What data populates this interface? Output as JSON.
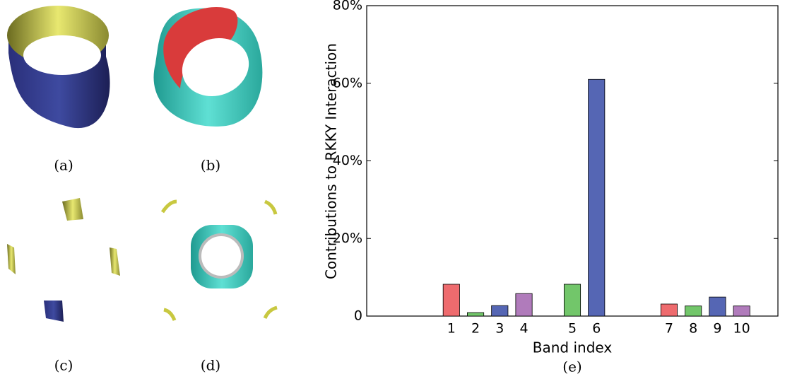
{
  "panel_captions": [
    "(a)",
    "(b)",
    "(c)",
    "(d)"
  ],
  "chart_data": {
    "type": "bar",
    "caption": "(e)",
    "x_label": "Band index",
    "y_label": "Contributions to RKKY Interaction",
    "categories": [
      null,
      null,
      null,
      "1",
      "2",
      "3",
      "4",
      null,
      "5",
      "6",
      null,
      null,
      "7",
      "8",
      "9",
      "10",
      null
    ],
    "values": [
      null,
      null,
      null,
      8.2,
      0.9,
      2.7,
      5.8,
      null,
      8.2,
      61.0,
      null,
      null,
      3.1,
      2.6,
      4.9,
      2.6,
      null
    ],
    "colors": [
      null,
      null,
      null,
      "#ee6b6e",
      "#72c66a",
      "#5566b4",
      "#b07bbb",
      null,
      "#72c66a",
      "#5566b4",
      null,
      null,
      "#ee6b6e",
      "#72c66a",
      "#5566b4",
      "#b07bbb",
      null
    ],
    "ylim": [
      0,
      80
    ],
    "yticks": [
      0,
      {
        "value": 20,
        "label": "20%"
      },
      {
        "value": 40,
        "label": "40%"
      },
      {
        "value": 60,
        "label": "60%"
      },
      {
        "value": 80,
        "label": "80%"
      }
    ]
  }
}
